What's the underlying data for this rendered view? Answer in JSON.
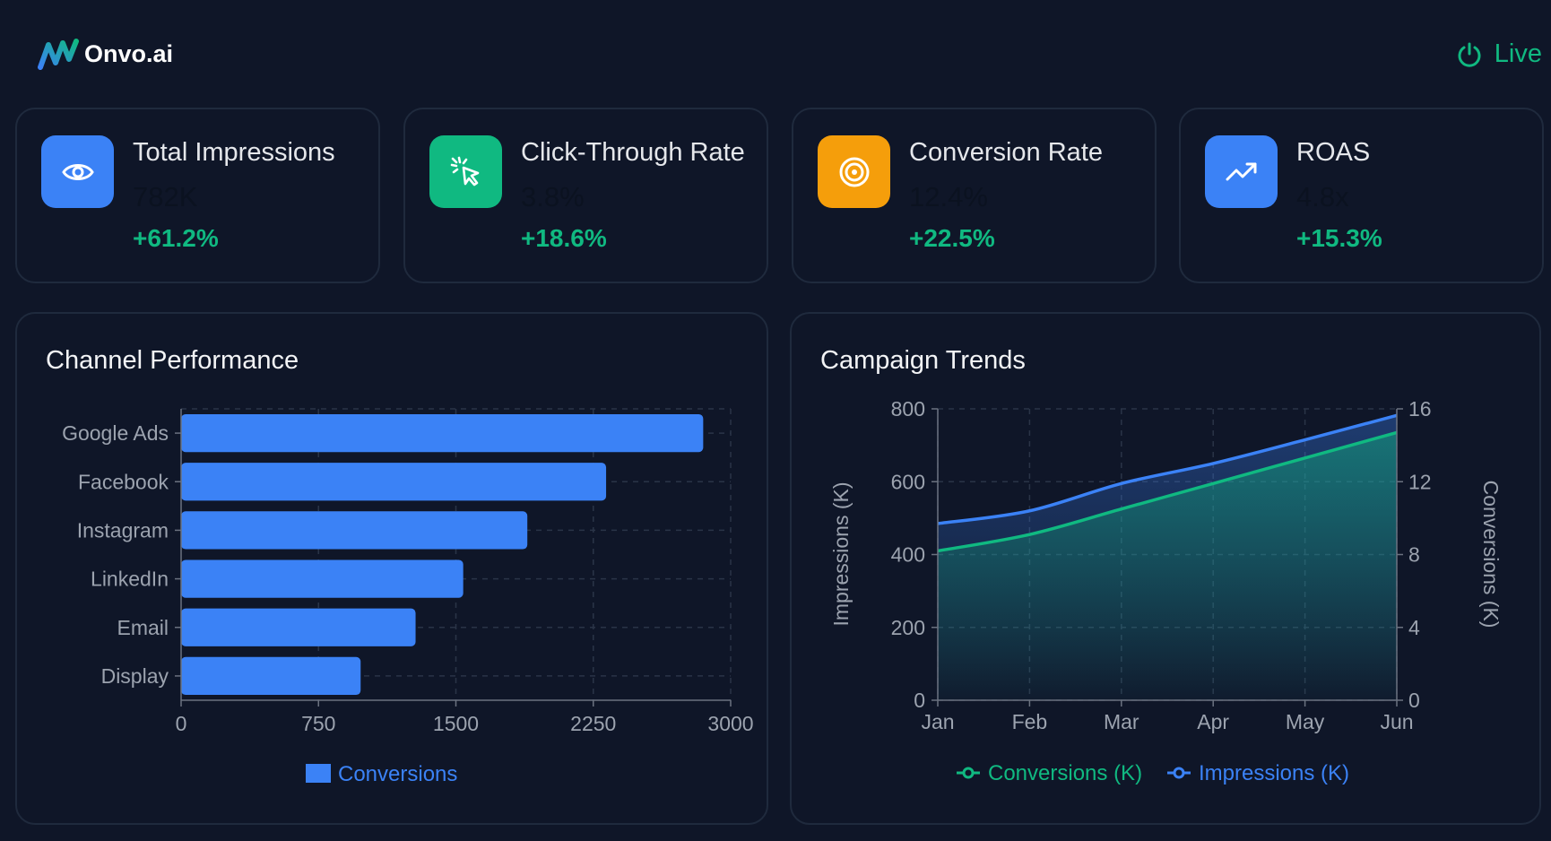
{
  "header": {
    "brand": "Onvo.ai",
    "status": "Live"
  },
  "colors": {
    "background": "#0f1628",
    "accent_blue": "#3b82f6",
    "accent_green": "#10b981",
    "accent_orange": "#f59e0b"
  },
  "kpis": [
    {
      "label": "Total Impressions",
      "value": "782K",
      "change": "+61.2%",
      "icon": "eye-icon"
    },
    {
      "label": "Click-Through Rate",
      "value": "3.8%",
      "change": "+18.6%",
      "icon": "cursor-click-icon"
    },
    {
      "label": "Conversion Rate",
      "value": "12.4%",
      "change": "+22.5%",
      "icon": "target-icon"
    },
    {
      "label": "ROAS",
      "value": "4.8x",
      "change": "+15.3%",
      "icon": "trending-up-icon"
    }
  ],
  "chart_data": [
    {
      "type": "bar",
      "orientation": "horizontal",
      "title": "Channel Performance",
      "categories": [
        "Google Ads",
        "Facebook",
        "Instagram",
        "LinkedIn",
        "Email",
        "Display"
      ],
      "series": [
        {
          "name": "Conversions",
          "values": [
            2850,
            2320,
            1890,
            1540,
            1280,
            980
          ]
        }
      ],
      "xlim": [
        0,
        3000
      ],
      "xticks": [
        "0",
        "750",
        "1500",
        "2250",
        "3000"
      ],
      "grid": true,
      "legend": "bottom-center"
    },
    {
      "type": "area",
      "title": "Campaign Trends",
      "x": [
        "Jan",
        "Feb",
        "Mar",
        "Apr",
        "May",
        "Jun"
      ],
      "series": [
        {
          "name": "Conversions (K)",
          "axis": "right",
          "values": [
            8.2,
            9.1,
            10.5,
            11.9,
            13.3,
            14.7
          ]
        },
        {
          "name": "Impressions (K)",
          "axis": "left",
          "values": [
            485,
            520,
            595,
            650,
            715,
            782
          ]
        }
      ],
      "ylabel": "Impressions (K)",
      "ylim": [
        0,
        800
      ],
      "yticks": [
        "0",
        "200",
        "400",
        "600",
        "800"
      ],
      "y2label": "Conversions (K)",
      "y2lim": [
        0,
        16
      ],
      "y2ticks": [
        "0",
        "4",
        "8",
        "12",
        "16"
      ],
      "grid": true,
      "legend": "bottom-center"
    }
  ]
}
